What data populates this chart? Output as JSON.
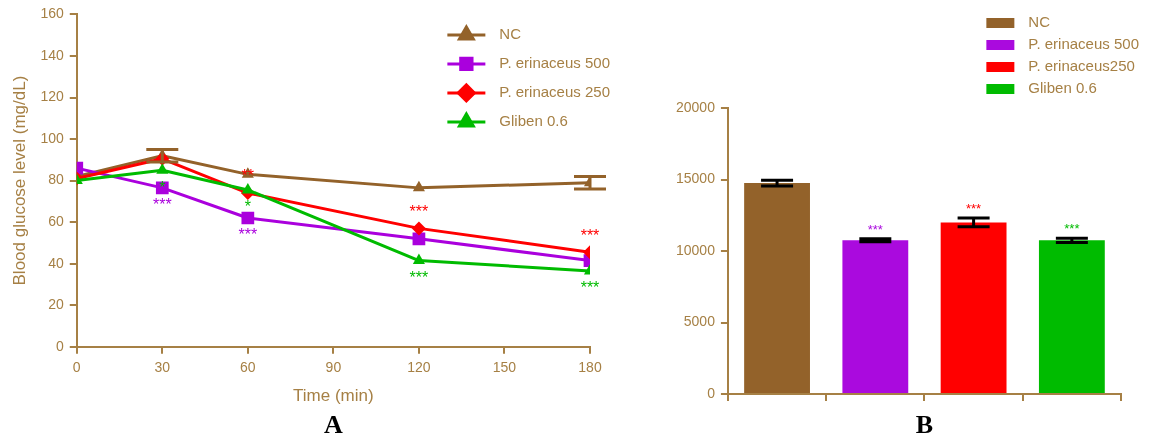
{
  "chart_data": [
    {
      "type": "line",
      "xlabel": "Time (min)",
      "ylabel": "Blood glucose level (mg/dL)",
      "annotations": [
        "A"
      ],
      "x": [
        0,
        30,
        60,
        120,
        180
      ],
      "xlim": [
        0,
        180
      ],
      "xticks": [
        0,
        30,
        60,
        90,
        120,
        150,
        180
      ],
      "ylim": [
        0,
        160
      ],
      "yticks": [
        0,
        20,
        40,
        60,
        80,
        100,
        120,
        140,
        160
      ],
      "legend": "top right",
      "grid": false,
      "line_style": "solid",
      "series": [
        {
          "name": "NC",
          "color": "#93622a",
          "marker": "triangle",
          "values": [
            82,
            92,
            83,
            76.5,
            79
          ],
          "errors": [
            null,
            3,
            null,
            null,
            3
          ]
        },
        {
          "name": "P. erinaceus 500",
          "color": "#aa00dd",
          "marker": "square",
          "values": [
            86,
            76.5,
            62,
            52,
            41.5
          ],
          "value_labels": [
            null,
            "***",
            "***",
            null,
            null
          ]
        },
        {
          "name": "P. erinaceus 250",
          "color": "#ff0000",
          "marker": "diamond",
          "values": [
            81,
            90.5,
            74,
            57,
            45.5
          ],
          "value_labels": [
            null,
            null,
            "**",
            "***",
            "***"
          ]
        },
        {
          "name": "Gliben 0.6",
          "color": "#00bb00",
          "marker": "triangle",
          "values": [
            80,
            85,
            75.5,
            41.5,
            36.5
          ],
          "value_labels": [
            null,
            "*",
            "*",
            "***",
            "***"
          ]
        }
      ]
    },
    {
      "type": "bar",
      "annotations": [
        "B"
      ],
      "categories": [
        null,
        null,
        null,
        null
      ],
      "ylim": [
        0,
        20000
      ],
      "yticks": [
        0,
        5000,
        10000,
        15000,
        20000
      ],
      "tick_labels": "y",
      "legend": "top right",
      "grid": false,
      "series": [
        {
          "name": "NC",
          "color": "#93622a",
          "values": [
            14750,
            null,
            null,
            null
          ],
          "errors": [
            200,
            null,
            null,
            null
          ]
        },
        {
          "name": "P. erinaceus 500",
          "color": "#aa0ade",
          "values": [
            null,
            10750,
            null,
            null
          ],
          "errors": [
            null,
            100,
            null,
            null
          ],
          "value_labels": [
            null,
            "***",
            null,
            null
          ]
        },
        {
          "name": "P. erinaceus250",
          "color": "#ff0000",
          "values": [
            null,
            null,
            12000,
            null
          ],
          "errors": [
            null,
            null,
            300,
            null
          ],
          "value_labels": [
            null,
            null,
            "***",
            null
          ]
        },
        {
          "name": "Gliben 0.6",
          "color": "#00bb00",
          "values": [
            null,
            null,
            null,
            10750
          ],
          "errors": [
            null,
            null,
            null,
            150
          ],
          "value_labels": [
            null,
            null,
            null,
            "***"
          ]
        }
      ]
    }
  ]
}
